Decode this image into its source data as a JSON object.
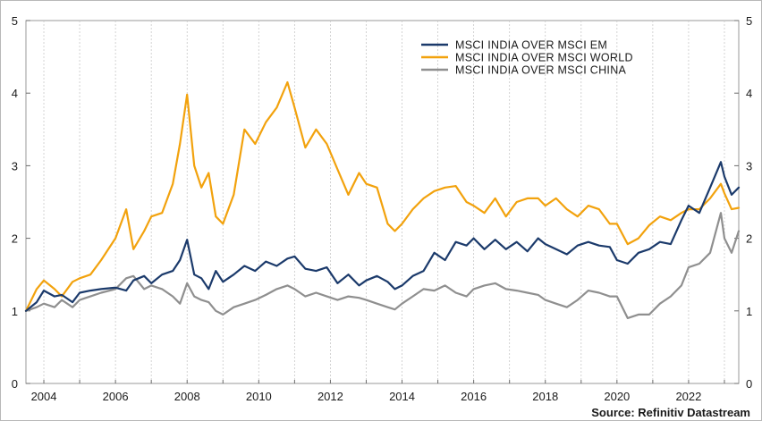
{
  "chart_data": {
    "type": "line",
    "title": "",
    "xlabel": "",
    "ylabel": "",
    "xlim": [
      2003.5,
      2023.4
    ],
    "ylim": [
      0,
      5
    ],
    "y_ticks": [
      0,
      1,
      2,
      3,
      4,
      5
    ],
    "x_ticks": [
      2004,
      2006,
      2008,
      2010,
      2012,
      2014,
      2016,
      2018,
      2020,
      2022
    ],
    "y_ticks_right": [
      0,
      1,
      2,
      3,
      4,
      5
    ],
    "grid": "vertical dotted",
    "legend_position": "top-right",
    "source": "Source: Refinitiv Datastream",
    "series": [
      {
        "name": "MSCI INDIA OVER MSCI EM",
        "color": "#1b3a6b",
        "x": [
          2003.5,
          2003.8,
          2004.0,
          2004.3,
          2004.5,
          2004.8,
          2005.0,
          2005.3,
          2005.6,
          2006.0,
          2006.3,
          2006.5,
          2006.8,
          2007.0,
          2007.3,
          2007.6,
          2007.8,
          2008.0,
          2008.2,
          2008.4,
          2008.6,
          2008.8,
          2009.0,
          2009.3,
          2009.6,
          2009.9,
          2010.2,
          2010.5,
          2010.8,
          2011.0,
          2011.3,
          2011.6,
          2011.9,
          2012.2,
          2012.5,
          2012.8,
          2013.0,
          2013.3,
          2013.6,
          2013.8,
          2014.0,
          2014.3,
          2014.6,
          2014.9,
          2015.2,
          2015.5,
          2015.8,
          2016.0,
          2016.3,
          2016.6,
          2016.9,
          2017.2,
          2017.5,
          2017.8,
          2018.0,
          2018.3,
          2018.6,
          2018.9,
          2019.2,
          2019.5,
          2019.8,
          2020.0,
          2020.3,
          2020.6,
          2020.9,
          2021.2,
          2021.5,
          2021.8,
          2022.0,
          2022.3,
          2022.6,
          2022.9,
          2023.0,
          2023.2,
          2023.4
        ],
        "values": [
          1.0,
          1.12,
          1.28,
          1.2,
          1.22,
          1.12,
          1.25,
          1.28,
          1.3,
          1.32,
          1.28,
          1.42,
          1.48,
          1.38,
          1.5,
          1.55,
          1.7,
          1.98,
          1.5,
          1.45,
          1.3,
          1.55,
          1.4,
          1.5,
          1.62,
          1.55,
          1.68,
          1.62,
          1.72,
          1.75,
          1.58,
          1.55,
          1.6,
          1.38,
          1.5,
          1.35,
          1.42,
          1.48,
          1.4,
          1.3,
          1.35,
          1.48,
          1.55,
          1.8,
          1.7,
          1.95,
          1.9,
          2.0,
          1.85,
          1.98,
          1.85,
          1.95,
          1.82,
          2.0,
          1.92,
          1.85,
          1.78,
          1.9,
          1.95,
          1.9,
          1.88,
          1.7,
          1.65,
          1.8,
          1.85,
          1.95,
          1.92,
          2.25,
          2.45,
          2.35,
          2.7,
          3.05,
          2.85,
          2.6,
          2.7
        ]
      },
      {
        "name": "MSCI INDIA OVER MSCI WORLD",
        "color": "#f2a20d",
        "x": [
          2003.5,
          2003.8,
          2004.0,
          2004.3,
          2004.5,
          2004.8,
          2005.0,
          2005.3,
          2005.6,
          2006.0,
          2006.3,
          2006.5,
          2006.8,
          2007.0,
          2007.3,
          2007.6,
          2007.8,
          2008.0,
          2008.2,
          2008.4,
          2008.6,
          2008.8,
          2009.0,
          2009.3,
          2009.6,
          2009.9,
          2010.2,
          2010.5,
          2010.8,
          2011.0,
          2011.3,
          2011.6,
          2011.9,
          2012.2,
          2012.5,
          2012.8,
          2013.0,
          2013.3,
          2013.6,
          2013.8,
          2014.0,
          2014.3,
          2014.6,
          2014.9,
          2015.2,
          2015.5,
          2015.8,
          2016.0,
          2016.3,
          2016.6,
          2016.9,
          2017.2,
          2017.5,
          2017.8,
          2018.0,
          2018.3,
          2018.6,
          2018.9,
          2019.2,
          2019.5,
          2019.8,
          2020.0,
          2020.3,
          2020.6,
          2020.9,
          2021.2,
          2021.5,
          2021.8,
          2022.0,
          2022.3,
          2022.6,
          2022.9,
          2023.0,
          2023.2,
          2023.4
        ],
        "values": [
          1.0,
          1.3,
          1.42,
          1.3,
          1.2,
          1.4,
          1.45,
          1.5,
          1.7,
          2.0,
          2.4,
          1.85,
          2.1,
          2.3,
          2.35,
          2.75,
          3.3,
          3.98,
          3.0,
          2.7,
          2.9,
          2.3,
          2.2,
          2.6,
          3.5,
          3.3,
          3.6,
          3.8,
          4.15,
          3.8,
          3.25,
          3.5,
          3.3,
          2.95,
          2.6,
          2.9,
          2.75,
          2.7,
          2.2,
          2.1,
          2.2,
          2.4,
          2.55,
          2.65,
          2.7,
          2.72,
          2.5,
          2.45,
          2.35,
          2.55,
          2.3,
          2.5,
          2.55,
          2.55,
          2.45,
          2.55,
          2.4,
          2.3,
          2.45,
          2.4,
          2.2,
          2.2,
          1.92,
          2.0,
          2.18,
          2.3,
          2.25,
          2.35,
          2.4,
          2.4,
          2.55,
          2.75,
          2.62,
          2.4,
          2.42
        ]
      },
      {
        "name": "MSCI INDIA OVER MSCI CHINA",
        "color": "#8f8f8f",
        "x": [
          2003.5,
          2003.8,
          2004.0,
          2004.3,
          2004.5,
          2004.8,
          2005.0,
          2005.3,
          2005.6,
          2006.0,
          2006.3,
          2006.5,
          2006.8,
          2007.0,
          2007.3,
          2007.6,
          2007.8,
          2008.0,
          2008.2,
          2008.4,
          2008.6,
          2008.8,
          2009.0,
          2009.3,
          2009.6,
          2009.9,
          2010.2,
          2010.5,
          2010.8,
          2011.0,
          2011.3,
          2011.6,
          2011.9,
          2012.2,
          2012.5,
          2012.8,
          2013.0,
          2013.3,
          2013.6,
          2013.8,
          2014.0,
          2014.3,
          2014.6,
          2014.9,
          2015.2,
          2015.5,
          2015.8,
          2016.0,
          2016.3,
          2016.6,
          2016.9,
          2017.2,
          2017.5,
          2017.8,
          2018.0,
          2018.3,
          2018.6,
          2018.9,
          2019.2,
          2019.5,
          2019.8,
          2020.0,
          2020.3,
          2020.6,
          2020.9,
          2021.2,
          2021.5,
          2021.8,
          2022.0,
          2022.3,
          2022.6,
          2022.9,
          2023.0,
          2023.2,
          2023.4
        ],
        "values": [
          1.0,
          1.05,
          1.1,
          1.05,
          1.15,
          1.05,
          1.15,
          1.2,
          1.25,
          1.3,
          1.45,
          1.48,
          1.3,
          1.35,
          1.3,
          1.2,
          1.1,
          1.38,
          1.2,
          1.15,
          1.12,
          1.0,
          0.95,
          1.05,
          1.1,
          1.15,
          1.22,
          1.3,
          1.35,
          1.3,
          1.2,
          1.25,
          1.2,
          1.15,
          1.2,
          1.18,
          1.15,
          1.1,
          1.05,
          1.02,
          1.1,
          1.2,
          1.3,
          1.28,
          1.35,
          1.25,
          1.2,
          1.3,
          1.35,
          1.38,
          1.3,
          1.28,
          1.25,
          1.22,
          1.15,
          1.1,
          1.05,
          1.15,
          1.28,
          1.25,
          1.2,
          1.2,
          0.9,
          0.95,
          0.95,
          1.1,
          1.2,
          1.35,
          1.6,
          1.65,
          1.8,
          2.35,
          2.0,
          1.8,
          2.1
        ]
      }
    ]
  }
}
